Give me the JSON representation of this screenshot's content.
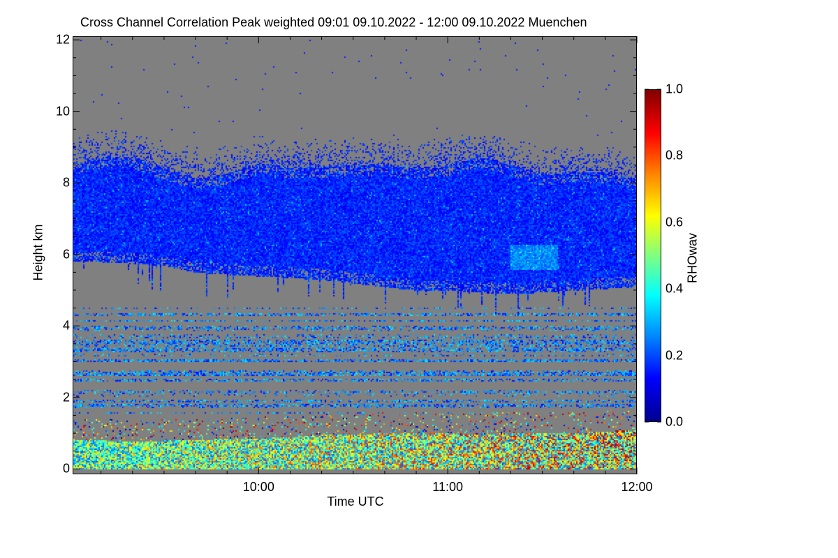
{
  "chart_data": {
    "type": "heatmap",
    "title": "Cross Channel Correlation Peak weighted   09:01 09.10.2022 - 12:00 09.10.2022 Muenchen",
    "xlabel": "Time UTC",
    "ylabel": "Height km",
    "colorbar_label": "RHOwav",
    "xlim": [
      "09:01",
      "12:00"
    ],
    "ylim": [
      -0.15,
      12.1
    ],
    "clim": [
      0.0,
      1.0
    ],
    "xticks": [
      "10:00",
      "11:00",
      "12:00"
    ],
    "yticks": [
      "0",
      "2",
      "4",
      "6",
      "8",
      "10",
      "12"
    ],
    "cticks": [
      "0.0",
      "0.2",
      "0.4",
      "0.6",
      "0.8",
      "1.0"
    ],
    "colormap": [
      "#00008f",
      "#0000ff",
      "#0080ff",
      "#00ffff",
      "#80ff80",
      "#ffff00",
      "#ff8000",
      "#ff0000",
      "#800000"
    ],
    "missing_color": "#808080",
    "layers": {
      "time_minutes_after_0900": [
        1,
        10,
        20,
        30,
        40,
        50,
        60,
        70,
        80,
        90,
        100,
        110,
        120,
        130,
        140,
        150,
        160,
        170,
        180
      ],
      "cirrus_base_km": [
        5.8,
        5.8,
        5.75,
        5.7,
        5.5,
        5.45,
        5.4,
        5.35,
        5.3,
        5.2,
        5.1,
        5.0,
        5.0,
        4.95,
        4.9,
        4.95,
        5.0,
        5.05,
        5.1
      ],
      "cirrus_top_km": [
        8.5,
        8.6,
        8.6,
        8.45,
        8.3,
        8.4,
        8.5,
        8.3,
        8.4,
        8.6,
        8.7,
        8.5,
        8.4,
        8.6,
        8.5,
        8.4,
        8.5,
        8.3,
        8.0
      ],
      "cirrus_value_typical": 0.15,
      "boundary_layer_top_km": [
        0.8,
        0.8,
        0.75,
        0.8,
        0.8,
        0.85,
        0.85,
        0.9,
        0.95,
        0.95,
        1.0,
        1.0,
        1.0,
        0.95,
        1.0,
        1.0,
        1.0,
        1.05,
        1.1
      ],
      "boundary_layer_value_range": [
        0.2,
        1.0
      ]
    }
  }
}
